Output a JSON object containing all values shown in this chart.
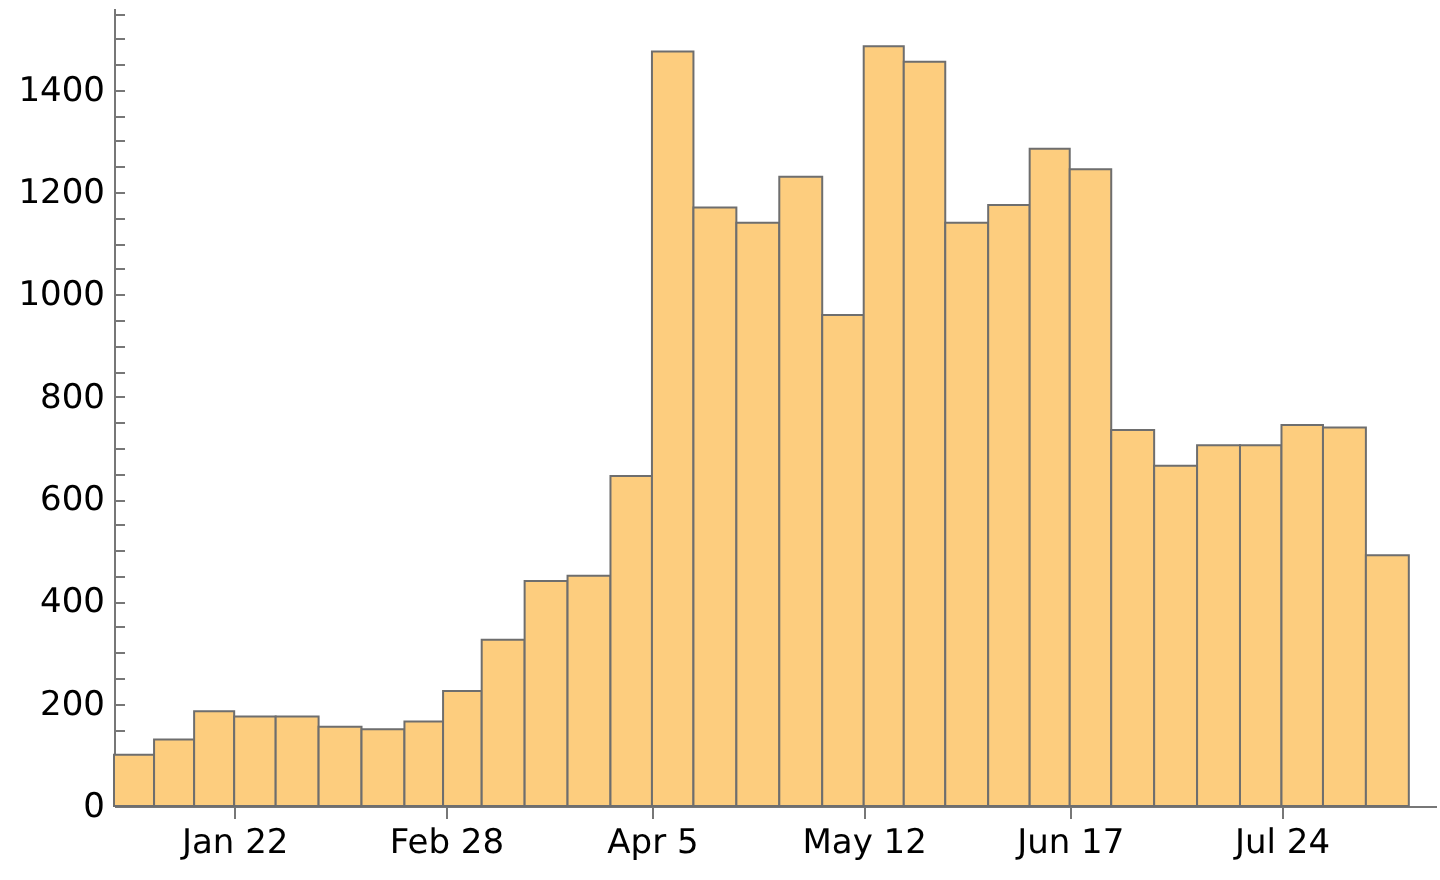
{
  "chart_data": {
    "type": "bar",
    "x": [
      "--01-04T12:00",
      "--01-11T12:00",
      "--01-18T12:00",
      "--01-25T12:00",
      "--02-02",
      "--02-09T12:00",
      "--02-17",
      "--02-24T12:00",
      "--03-02T12:00",
      "--03-10",
      "--03-17T12:00",
      "--03-25",
      "--04-01T12:00",
      "--04-08T12:00",
      "--04-16",
      "--04-23T12:00",
      "--05-01",
      "--05-08T12:00",
      "--05-15T12:00",
      "--05-22T12:00",
      "--05-30",
      "--06-06T12:00",
      "--06-13T12:00",
      "--06-20T12:00",
      "--06-28",
      "--07-05T12:00",
      "--07-13",
      "--07-20T12:00",
      "--07-27T12:00",
      "--08-04",
      "--08-11T12:00"
    ],
    "values": [
      100,
      130,
      185,
      175,
      175,
      155,
      150,
      165,
      225,
      325,
      440,
      450,
      645,
      1475,
      1170,
      1140,
      1230,
      960,
      1485,
      1455,
      1140,
      1175,
      1285,
      1245,
      735,
      665,
      705,
      705,
      745,
      740,
      490
    ],
    "color": "#fdcd7e",
    "xlim": [
      "--01-01",
      "--08-20"
    ],
    "xticks": [
      {
        "value": "--01-22",
        "label": "Jan 22"
      },
      {
        "value": "--02-28",
        "label": "Feb 28"
      },
      {
        "value": "--04-05",
        "label": "Apr 5"
      },
      {
        "value": "--05-12",
        "label": "May 12"
      },
      {
        "value": "--06-17",
        "label": "Jun 17"
      },
      {
        "value": "--07-24",
        "label": "Jul 24"
      }
    ],
    "ylim": [
      0,
      1560
    ],
    "yticks": [
      0,
      {
        "value": 50,
        "label": null
      },
      {
        "value": 100,
        "label": null
      },
      {
        "value": 150,
        "label": null
      },
      200,
      {
        "value": 250,
        "label": null
      },
      {
        "value": 300,
        "label": null
      },
      {
        "value": 350,
        "label": null
      },
      400,
      {
        "value": 450,
        "label": null
      },
      {
        "value": 500,
        "label": null
      },
      {
        "value": 550,
        "label": null
      },
      600,
      {
        "value": 650,
        "label": null
      },
      {
        "value": 700,
        "label": null
      },
      {
        "value": 750,
        "label": null
      },
      800,
      {
        "value": 850,
        "label": null
      },
      {
        "value": 900,
        "label": null
      },
      {
        "value": 950,
        "label": null
      },
      1000,
      {
        "value": 1050,
        "label": null
      },
      {
        "value": 1100,
        "label": null
      },
      {
        "value": 1150,
        "label": null
      },
      1200,
      {
        "value": 1250,
        "label": null
      },
      {
        "value": 1300,
        "label": null
      },
      {
        "value": 1350,
        "label": null
      },
      1400,
      {
        "value": 1450,
        "label": null
      },
      {
        "value": 1500,
        "label": null
      },
      {
        "value": 1550,
        "label": null
      }
    ],
    "grid": false
  }
}
